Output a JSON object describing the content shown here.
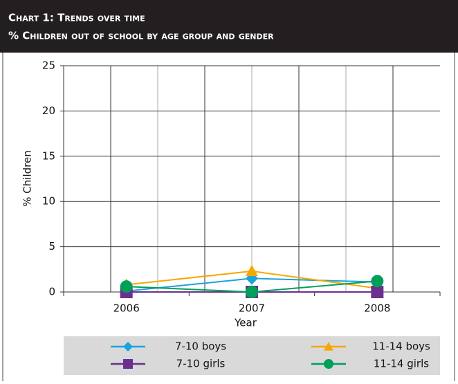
{
  "chart_data": {
    "type": "line",
    "title": "Chart 1: Trends over time",
    "subtitle": "% Children out of school by age group and gender",
    "x_label": "Year",
    "y_label": "% Children",
    "categories": [
      "2006",
      "2007",
      "2008"
    ],
    "ylim": [
      0,
      25
    ],
    "yticks": [
      0,
      5,
      10,
      15,
      20,
      25
    ],
    "grid": true,
    "series": [
      {
        "name": "7-10 boys",
        "color": "#1aa3dc",
        "marker": "diamond",
        "values": [
          0.1,
          1.5,
          1.1
        ]
      },
      {
        "name": "11-14 boys",
        "color": "#f5a800",
        "marker": "triangle",
        "values": [
          0.8,
          2.3,
          0.4
        ]
      },
      {
        "name": "7-10 girls",
        "color": "#6b2f90",
        "marker": "square",
        "values": [
          0,
          0,
          0
        ]
      },
      {
        "name": "11-14 girls",
        "color": "#00a05a",
        "marker": "circle",
        "values": [
          0.6,
          0,
          1.2
        ]
      }
    ]
  }
}
